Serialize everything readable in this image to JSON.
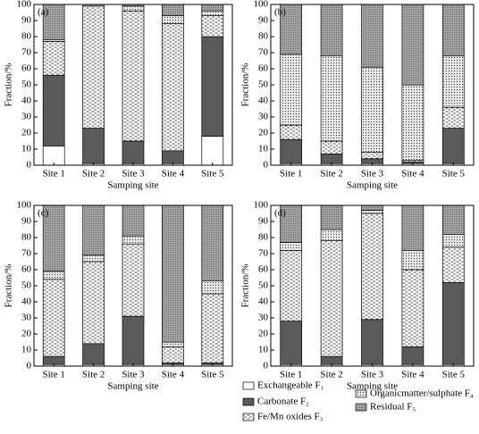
{
  "legend": {
    "entries": [
      {
        "name": "Exchangeable F₁",
        "color": "#ffffff"
      },
      {
        "name": "Carbonate F₂",
        "color": "#5a5a5a"
      },
      {
        "name": "Fe/Mn oxides F₃",
        "color": "#ffffff"
      },
      {
        "name": "Organicmatter/sulphate F₄",
        "color": "#e8e8e8"
      },
      {
        "name": "Residual F₅",
        "color": "#a8a8a8"
      }
    ]
  },
  "chart_data": [
    {
      "type": "bar",
      "stacked": true,
      "panel": "(a)",
      "xlabel": "Samping site",
      "ylabel": "Fraction/%",
      "categories": [
        "Site 1",
        "Site 2",
        "Site 3",
        "Site 4",
        "Site 5"
      ],
      "ylim": [
        0,
        100
      ],
      "yticks": [
        0,
        10,
        20,
        30,
        40,
        50,
        60,
        70,
        80,
        90,
        100
      ],
      "series": [
        {
          "values": [
            12,
            1,
            1,
            1,
            18
          ]
        },
        {
          "values": [
            44,
            22,
            14,
            8,
            62
          ]
        },
        {
          "values": [
            21,
            76,
            81,
            79,
            13
          ]
        },
        {
          "values": [
            1,
            0,
            3,
            5,
            3
          ]
        },
        {
          "values": [
            22,
            1,
            1,
            7,
            4
          ]
        }
      ]
    },
    {
      "type": "bar",
      "stacked": true,
      "panel": "(b)",
      "xlabel": "Samping site",
      "ylabel": "Fraction/%",
      "categories": [
        "Site 1",
        "Site 2",
        "Site 3",
        "Site 4",
        "Site 5"
      ],
      "ylim": [
        0,
        100
      ],
      "yticks": [
        0,
        10,
        20,
        30,
        40,
        50,
        60,
        70,
        80,
        90,
        100
      ],
      "series": [
        {
          "values": [
            1,
            1,
            1,
            1,
            1
          ]
        },
        {
          "values": [
            15,
            6,
            3,
            1,
            22
          ]
        },
        {
          "values": [
            9,
            8,
            4,
            1,
            13
          ]
        },
        {
          "values": [
            44,
            53,
            53,
            47,
            32
          ]
        },
        {
          "values": [
            31,
            32,
            39,
            50,
            32
          ]
        }
      ]
    },
    {
      "type": "bar",
      "stacked": true,
      "panel": "(c)",
      "xlabel": "Samping site",
      "ylabel": "Fraction/%",
      "categories": [
        "Site 1",
        "Site 2",
        "Site 3",
        "Site 4",
        "Site 5"
      ],
      "ylim": [
        0,
        100
      ],
      "yticks": [
        0,
        10,
        20,
        30,
        40,
        50,
        60,
        70,
        80,
        90,
        100
      ],
      "series": [
        {
          "values": [
            1,
            1,
            1,
            1,
            1
          ]
        },
        {
          "values": [
            5,
            13,
            30,
            1,
            1
          ]
        },
        {
          "values": [
            48,
            51,
            45,
            10,
            43
          ]
        },
        {
          "values": [
            5,
            4,
            5,
            3,
            8
          ]
        },
        {
          "values": [
            41,
            31,
            19,
            85,
            47
          ]
        }
      ]
    },
    {
      "type": "bar",
      "stacked": true,
      "panel": "(d)",
      "xlabel": "Samping site",
      "ylabel": "Fraction/%",
      "categories": [
        "Site 1",
        "Site 2",
        "Site 3",
        "Site 4",
        "Site 5"
      ],
      "ylim": [
        0,
        100
      ],
      "yticks": [
        0,
        10,
        20,
        30,
        40,
        50,
        60,
        70,
        80,
        90,
        100
      ],
      "series": [
        {
          "values": [
            1,
            1,
            1,
            1,
            1
          ]
        },
        {
          "values": [
            27,
            5,
            28,
            11,
            51
          ]
        },
        {
          "values": [
            44,
            72,
            66,
            48,
            22
          ]
        },
        {
          "values": [
            5,
            7,
            2,
            12,
            8
          ]
        },
        {
          "values": [
            23,
            15,
            3,
            28,
            18
          ]
        }
      ]
    }
  ]
}
